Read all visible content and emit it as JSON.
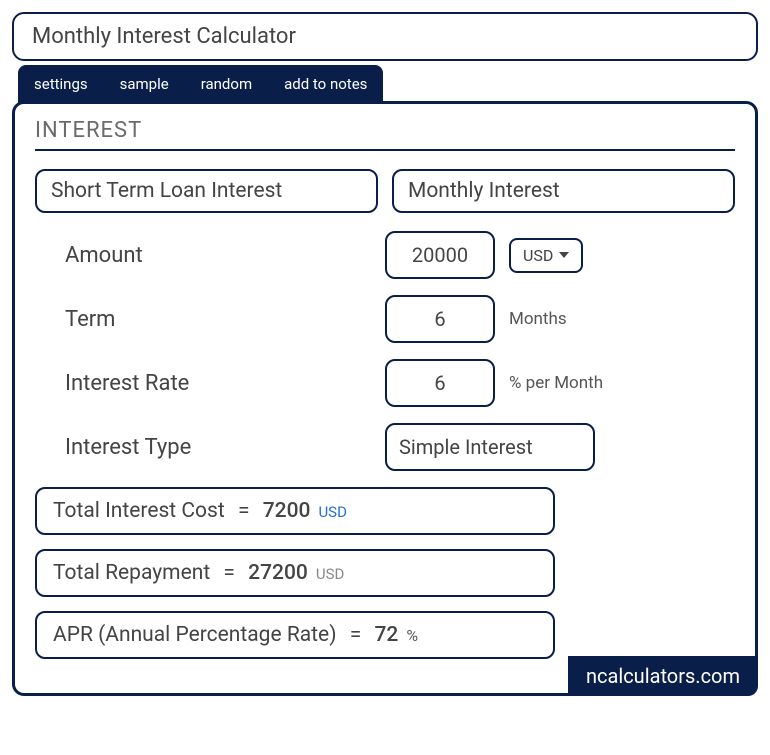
{
  "title": "Monthly Interest Calculator",
  "tabs": [
    "settings",
    "sample",
    "random",
    "add to notes"
  ],
  "section_heading": "INTEREST",
  "mode_buttons": {
    "left": "Short Term Loan Interest",
    "right": "Monthly Interest"
  },
  "fields": {
    "amount": {
      "label": "Amount",
      "value": "20000",
      "currency": "USD"
    },
    "term": {
      "label": "Term",
      "value": "6",
      "unit": "Months"
    },
    "rate": {
      "label": "Interest Rate",
      "value": "6",
      "unit": "% per Month"
    },
    "type": {
      "label": "Interest Type",
      "value": "Simple Interest"
    }
  },
  "results": {
    "interest_cost": {
      "label": "Total Interest Cost",
      "value": "7200",
      "unit": "USD",
      "unit_color": "#1f6fd6"
    },
    "repayment": {
      "label": "Total Repayment",
      "value": "27200",
      "unit": "USD",
      "unit_color": "#888888"
    },
    "apr": {
      "label": "APR (Annual Percentage Rate)",
      "value": "72",
      "unit": "%",
      "unit_color": "#555555"
    }
  },
  "brand": "ncalculators.com",
  "colors": {
    "primary": "#0a1e4a",
    "text": "#444444",
    "link_blue": "#1f6fd6",
    "muted": "#888888"
  }
}
